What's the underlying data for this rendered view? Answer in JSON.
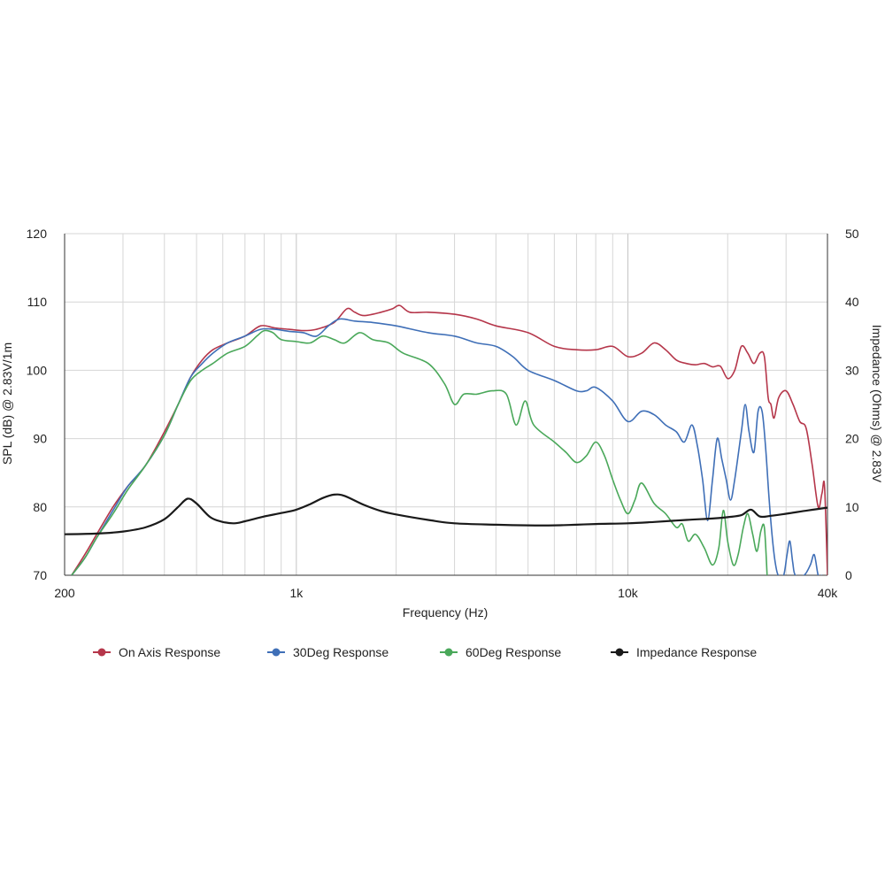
{
  "chart_data": {
    "type": "line",
    "xlabel": "Frequency (Hz)",
    "ylabel": "SPL (dB) @ 2.83V/1m",
    "y2label": "Impedance (Ohms) @ 2.83V",
    "xscale": "log",
    "xlim": [
      200,
      40000
    ],
    "ylim": [
      70,
      120
    ],
    "y2lim": [
      0,
      50
    ],
    "grid": true,
    "legend_position": "bottom",
    "x_ticks": [
      {
        "value": 200,
        "label": "200"
      },
      {
        "value": 1000,
        "label": "1k"
      },
      {
        "value": 10000,
        "label": "10k"
      },
      {
        "value": 40000,
        "label": "40k"
      }
    ],
    "y_ticks": [
      {
        "value": 70,
        "label": "70"
      },
      {
        "value": 80,
        "label": "80"
      },
      {
        "value": 90,
        "label": "90"
      },
      {
        "value": 100,
        "label": "100"
      },
      {
        "value": 110,
        "label": "110"
      },
      {
        "value": 120,
        "label": "120"
      }
    ],
    "y2_ticks": [
      {
        "value": 0,
        "label": "0"
      },
      {
        "value": 10,
        "label": "10"
      },
      {
        "value": 20,
        "label": "20"
      },
      {
        "value": 30,
        "label": "30"
      },
      {
        "value": 40,
        "label": "40"
      },
      {
        "value": 50,
        "label": "50"
      }
    ],
    "minor_grid_x": [
      300,
      400,
      500,
      600,
      700,
      800,
      900,
      2000,
      3000,
      4000,
      5000,
      6000,
      7000,
      8000,
      9000,
      20000,
      30000
    ],
    "series": [
      {
        "name": "On Axis Response",
        "color": "#b5364a",
        "axis": "left",
        "points": [
          [
            210,
            70
          ],
          [
            230,
            73
          ],
          [
            250,
            76
          ],
          [
            280,
            80
          ],
          [
            310,
            83
          ],
          [
            350,
            86
          ],
          [
            400,
            91
          ],
          [
            440,
            95
          ],
          [
            480,
            99
          ],
          [
            520,
            101.5
          ],
          [
            560,
            103
          ],
          [
            620,
            104
          ],
          [
            700,
            105
          ],
          [
            780,
            106.5
          ],
          [
            860,
            106.2
          ],
          [
            950,
            106
          ],
          [
            1050,
            105.8
          ],
          [
            1150,
            106
          ],
          [
            1300,
            107
          ],
          [
            1420,
            109
          ],
          [
            1500,
            108.5
          ],
          [
            1600,
            108
          ],
          [
            1800,
            108.5
          ],
          [
            1950,
            109
          ],
          [
            2050,
            109.5
          ],
          [
            2200,
            108.5
          ],
          [
            2500,
            108.5
          ],
          [
            3000,
            108.2
          ],
          [
            3500,
            107.5
          ],
          [
            4000,
            106.5
          ],
          [
            5000,
            105.5
          ],
          [
            6000,
            103.5
          ],
          [
            7000,
            103
          ],
          [
            8000,
            103
          ],
          [
            9000,
            103.5
          ],
          [
            10000,
            102
          ],
          [
            11000,
            102.5
          ],
          [
            12000,
            104
          ],
          [
            13000,
            103
          ],
          [
            14000,
            101.5
          ],
          [
            15000,
            101
          ],
          [
            16000,
            100.8
          ],
          [
            17000,
            101
          ],
          [
            18000,
            100.5
          ],
          [
            19000,
            100.6
          ],
          [
            20000,
            98.8
          ],
          [
            21000,
            100
          ],
          [
            22000,
            103.5
          ],
          [
            23000,
            102.5
          ],
          [
            24000,
            101
          ],
          [
            25000,
            102.5
          ],
          [
            25800,
            102
          ],
          [
            26500,
            96
          ],
          [
            27000,
            95
          ],
          [
            27600,
            93
          ],
          [
            28500,
            96
          ],
          [
            30000,
            97
          ],
          [
            31500,
            95
          ],
          [
            33000,
            92.5
          ],
          [
            34500,
            91.5
          ],
          [
            36000,
            86
          ],
          [
            37500,
            80
          ],
          [
            38500,
            82
          ],
          [
            39200,
            83
          ],
          [
            40000,
            70
          ]
        ]
      },
      {
        "name": "30Deg Response",
        "color": "#3f6fb7",
        "axis": "left",
        "points": [
          [
            210,
            70
          ],
          [
            230,
            72.5
          ],
          [
            250,
            75.5
          ],
          [
            280,
            79.5
          ],
          [
            310,
            83
          ],
          [
            350,
            86
          ],
          [
            400,
            90.5
          ],
          [
            440,
            95
          ],
          [
            480,
            99
          ],
          [
            520,
            101
          ],
          [
            560,
            102.5
          ],
          [
            620,
            104
          ],
          [
            700,
            105
          ],
          [
            780,
            106
          ],
          [
            860,
            106
          ],
          [
            950,
            105.7
          ],
          [
            1050,
            105.5
          ],
          [
            1150,
            105
          ],
          [
            1250,
            106.5
          ],
          [
            1350,
            107.5
          ],
          [
            1500,
            107.2
          ],
          [
            1700,
            107
          ],
          [
            2000,
            106.5
          ],
          [
            2500,
            105.5
          ],
          [
            3000,
            105
          ],
          [
            3500,
            104
          ],
          [
            4000,
            103.5
          ],
          [
            4500,
            102
          ],
          [
            5000,
            100
          ],
          [
            6000,
            98.5
          ],
          [
            7000,
            97
          ],
          [
            7500,
            97
          ],
          [
            8000,
            97.5
          ],
          [
            9000,
            95.5
          ],
          [
            10000,
            92.5
          ],
          [
            11000,
            94
          ],
          [
            12000,
            93.5
          ],
          [
            13000,
            92
          ],
          [
            14000,
            91
          ],
          [
            14800,
            89.5
          ],
          [
            15600,
            92
          ],
          [
            16200,
            89
          ],
          [
            16800,
            84
          ],
          [
            17400,
            78
          ],
          [
            18000,
            84
          ],
          [
            18600,
            90
          ],
          [
            19200,
            87
          ],
          [
            19800,
            84
          ],
          [
            20400,
            81
          ],
          [
            21000,
            84
          ],
          [
            22000,
            91
          ],
          [
            22600,
            95
          ],
          [
            23200,
            91
          ],
          [
            24000,
            88
          ],
          [
            24700,
            94
          ],
          [
            25400,
            94
          ],
          [
            26000,
            89
          ],
          [
            26600,
            82
          ],
          [
            27200,
            76
          ],
          [
            27800,
            72
          ],
          [
            28400,
            70
          ],
          [
            29500,
            70
          ],
          [
            30200,
            73
          ],
          [
            30800,
            75
          ],
          [
            31400,
            72
          ],
          [
            32000,
            70
          ],
          [
            34000,
            70
          ],
          [
            35500,
            71.5
          ],
          [
            36500,
            73
          ],
          [
            37500,
            70
          ],
          [
            38500,
            70
          ]
        ]
      },
      {
        "name": "60Deg Response",
        "color": "#4aa85a",
        "axis": "left",
        "points": [
          [
            210,
            70
          ],
          [
            230,
            72.5
          ],
          [
            250,
            75.5
          ],
          [
            280,
            79
          ],
          [
            310,
            82.5
          ],
          [
            350,
            86
          ],
          [
            400,
            90.5
          ],
          [
            440,
            95
          ],
          [
            480,
            98.5
          ],
          [
            520,
            100
          ],
          [
            560,
            101
          ],
          [
            620,
            102.5
          ],
          [
            700,
            103.5
          ],
          [
            760,
            105
          ],
          [
            800,
            105.8
          ],
          [
            850,
            105.5
          ],
          [
            900,
            104.5
          ],
          [
            1000,
            104.2
          ],
          [
            1100,
            104
          ],
          [
            1200,
            105
          ],
          [
            1300,
            104.5
          ],
          [
            1400,
            104
          ],
          [
            1550,
            105.5
          ],
          [
            1700,
            104.5
          ],
          [
            1900,
            104
          ],
          [
            2100,
            102.5
          ],
          [
            2500,
            101
          ],
          [
            2800,
            98
          ],
          [
            3000,
            95
          ],
          [
            3200,
            96.5
          ],
          [
            3500,
            96.5
          ],
          [
            3900,
            97
          ],
          [
            4300,
            96.5
          ],
          [
            4600,
            92
          ],
          [
            4900,
            95.5
          ],
          [
            5200,
            92
          ],
          [
            6000,
            89.5
          ],
          [
            6500,
            88
          ],
          [
            7000,
            86.5
          ],
          [
            7500,
            87.5
          ],
          [
            8000,
            89.5
          ],
          [
            8500,
            87.5
          ],
          [
            9000,
            84
          ],
          [
            9500,
            81
          ],
          [
            10000,
            79
          ],
          [
            10500,
            81
          ],
          [
            11000,
            83.5
          ],
          [
            12000,
            80.5
          ],
          [
            13000,
            79
          ],
          [
            14000,
            77
          ],
          [
            14600,
            77.5
          ],
          [
            15200,
            75
          ],
          [
            16000,
            76
          ],
          [
            17000,
            74
          ],
          [
            18000,
            71.5
          ],
          [
            18800,
            74
          ],
          [
            19400,
            79.5
          ],
          [
            20000,
            75
          ],
          [
            20800,
            71.5
          ],
          [
            21500,
            73
          ],
          [
            22300,
            77
          ],
          [
            23000,
            79
          ],
          [
            23800,
            76
          ],
          [
            24500,
            73.5
          ],
          [
            25200,
            76.5
          ],
          [
            25800,
            77
          ],
          [
            26300,
            70
          ]
        ]
      },
      {
        "name": "Impedance Response",
        "color": "#1a1a1a",
        "axis": "right",
        "points": [
          [
            200,
            6
          ],
          [
            250,
            6.1
          ],
          [
            300,
            6.4
          ],
          [
            350,
            7
          ],
          [
            400,
            8.2
          ],
          [
            440,
            10
          ],
          [
            470,
            11.2
          ],
          [
            500,
            10.5
          ],
          [
            550,
            8.5
          ],
          [
            600,
            7.8
          ],
          [
            650,
            7.6
          ],
          [
            700,
            7.9
          ],
          [
            800,
            8.6
          ],
          [
            900,
            9.1
          ],
          [
            1000,
            9.6
          ],
          [
            1100,
            10.4
          ],
          [
            1200,
            11.3
          ],
          [
            1300,
            11.8
          ],
          [
            1400,
            11.6
          ],
          [
            1600,
            10.3
          ],
          [
            1800,
            9.4
          ],
          [
            2000,
            8.9
          ],
          [
            2500,
            8.1
          ],
          [
            3000,
            7.6
          ],
          [
            4000,
            7.4
          ],
          [
            5000,
            7.3
          ],
          [
            6000,
            7.3
          ],
          [
            7000,
            7.4
          ],
          [
            8000,
            7.5
          ],
          [
            10000,
            7.6
          ],
          [
            12000,
            7.8
          ],
          [
            15000,
            8.1
          ],
          [
            18000,
            8.3
          ],
          [
            20000,
            8.5
          ],
          [
            22000,
            8.8
          ],
          [
            23500,
            9.6
          ],
          [
            25000,
            8.6
          ],
          [
            27000,
            8.7
          ],
          [
            30000,
            9
          ],
          [
            35000,
            9.5
          ],
          [
            40000,
            9.9
          ]
        ]
      }
    ]
  }
}
